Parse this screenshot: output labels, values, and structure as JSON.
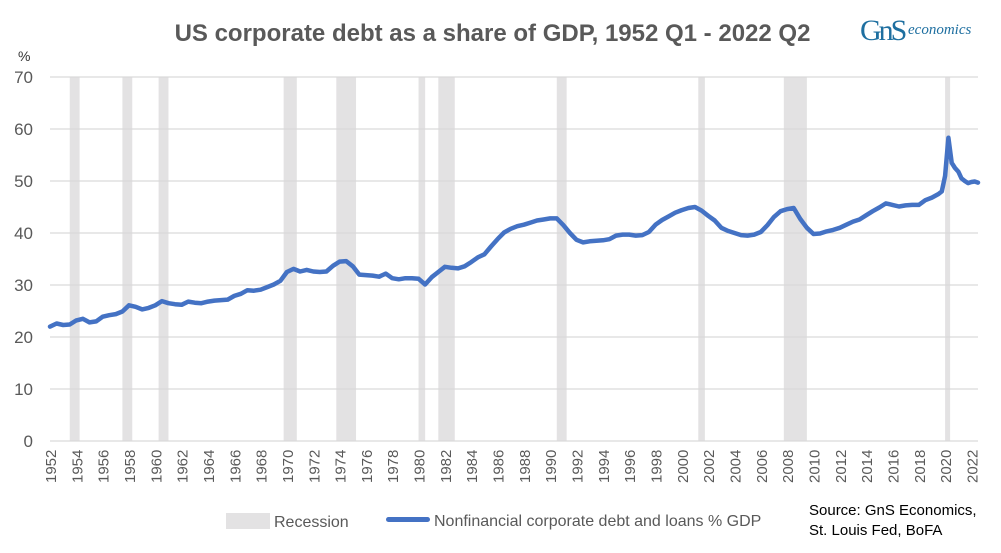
{
  "header": {
    "title": "US corporate debt as a share of GDP, 1952 Q1 - 2022 Q2",
    "logo_mark": "GnS",
    "logo_text": "economics"
  },
  "source": {
    "line1": "Source: GnS Economics,",
    "line2": "St. Louis Fed, BoFA"
  },
  "colors": {
    "line": "#4472c4",
    "recession": "#e3e2e3",
    "grid": "#d9d9d9",
    "text": "#595959",
    "logo": "#1e6fa0"
  },
  "chart_data": {
    "type": "line",
    "title": "US corporate debt as a share of GDP, 1952 Q1 - 2022 Q2",
    "xlabel": "",
    "ylabel": "%",
    "ylim": [
      0,
      70
    ],
    "xlim": [
      1952.0,
      2022.5
    ],
    "y_ticks": [
      0,
      10,
      20,
      30,
      40,
      50,
      60,
      70
    ],
    "x_ticks": [
      "1952",
      "1954",
      "1956",
      "1958",
      "1960",
      "1962",
      "1964",
      "1966",
      "1968",
      "1970",
      "1972",
      "1974",
      "1976",
      "1978",
      "1980",
      "1982",
      "1984",
      "1986",
      "1988",
      "1990",
      "1992",
      "1994",
      "1996",
      "1998",
      "2000",
      "2002",
      "2004",
      "2006",
      "2008",
      "2010",
      "2012",
      "2014",
      "2016",
      "2018",
      "2020",
      "2022"
    ],
    "grid": "horizontal",
    "legend_position": "bottom",
    "legend": [
      "Recession",
      "Nonfinancial corporate debt and loans % GDP"
    ],
    "recessions": [
      [
        1953.5,
        1954.25
      ],
      [
        1957.5,
        1958.25
      ],
      [
        1960.25,
        1961.0
      ],
      [
        1969.75,
        1970.75
      ],
      [
        1973.75,
        1975.25
      ],
      [
        1980.0,
        1980.5
      ],
      [
        1981.5,
        1982.75
      ],
      [
        1990.5,
        1991.25
      ],
      [
        2001.25,
        2001.75
      ],
      [
        2007.75,
        2009.5
      ],
      [
        2020.0,
        2020.25
      ]
    ],
    "series": [
      {
        "name": "Nonfinancial corporate debt and loans % GDP",
        "x": [
          1952.0,
          1952.5,
          1953.0,
          1953.5,
          1954.0,
          1954.5,
          1955.0,
          1955.5,
          1956.0,
          1956.5,
          1957.0,
          1957.5,
          1958.0,
          1958.5,
          1959.0,
          1959.5,
          1960.0,
          1960.5,
          1961.0,
          1961.5,
          1962.0,
          1962.5,
          1963.0,
          1963.5,
          1964.0,
          1964.5,
          1965.0,
          1965.5,
          1966.0,
          1966.5,
          1967.0,
          1967.5,
          1968.0,
          1968.5,
          1969.0,
          1969.5,
          1970.0,
          1970.5,
          1971.0,
          1971.5,
          1972.0,
          1972.5,
          1973.0,
          1973.5,
          1974.0,
          1974.5,
          1975.0,
          1975.5,
          1976.0,
          1976.5,
          1977.0,
          1977.5,
          1978.0,
          1978.5,
          1979.0,
          1979.5,
          1980.0,
          1980.5,
          1981.0,
          1981.5,
          1982.0,
          1982.5,
          1983.0,
          1983.5,
          1984.0,
          1984.5,
          1985.0,
          1985.5,
          1986.0,
          1986.5,
          1987.0,
          1987.5,
          1988.0,
          1988.5,
          1989.0,
          1989.5,
          1990.0,
          1990.5,
          1991.0,
          1991.5,
          1992.0,
          1992.5,
          1993.0,
          1993.5,
          1994.0,
          1994.5,
          1995.0,
          1995.5,
          1996.0,
          1996.5,
          1997.0,
          1997.5,
          1998.0,
          1998.5,
          1999.0,
          1999.5,
          2000.0,
          2000.5,
          2001.0,
          2001.5,
          2002.0,
          2002.5,
          2003.0,
          2003.5,
          2004.0,
          2004.5,
          2005.0,
          2005.5,
          2006.0,
          2006.5,
          2007.0,
          2007.5,
          2008.0,
          2008.5,
          2009.0,
          2009.5,
          2010.0,
          2010.5,
          2011.0,
          2011.5,
          2012.0,
          2012.5,
          2013.0,
          2013.5,
          2014.0,
          2014.5,
          2015.0,
          2015.5,
          2016.0,
          2016.5,
          2017.0,
          2017.5,
          2018.0,
          2018.5,
          2019.0,
          2019.5,
          2019.75,
          2020.0,
          2020.25,
          2020.5,
          2020.75,
          2021.0,
          2021.25,
          2021.5,
          2021.75,
          2022.0,
          2022.25,
          2022.5
        ],
        "values": [
          22.0,
          22.6,
          22.3,
          22.4,
          23.2,
          23.5,
          22.8,
          23.0,
          23.9,
          24.2,
          24.4,
          24.9,
          26.1,
          25.8,
          25.3,
          25.6,
          26.1,
          26.9,
          26.5,
          26.3,
          26.2,
          26.8,
          26.6,
          26.5,
          26.8,
          27.0,
          27.1,
          27.2,
          27.9,
          28.3,
          29.0,
          28.9,
          29.1,
          29.6,
          30.1,
          30.8,
          32.5,
          33.1,
          32.6,
          32.9,
          32.6,
          32.5,
          32.6,
          33.7,
          34.5,
          34.6,
          33.6,
          32.0,
          31.9,
          31.8,
          31.6,
          32.2,
          31.3,
          31.1,
          31.3,
          31.3,
          31.2,
          30.1,
          31.5,
          32.5,
          33.5,
          33.3,
          33.2,
          33.6,
          34.4,
          35.3,
          35.9,
          37.4,
          38.8,
          40.1,
          40.8,
          41.3,
          41.6,
          42.0,
          42.4,
          42.6,
          42.8,
          42.8,
          41.5,
          40.0,
          38.7,
          38.2,
          38.4,
          38.5,
          38.6,
          38.8,
          39.5,
          39.7,
          39.7,
          39.5,
          39.6,
          40.2,
          41.6,
          42.5,
          43.2,
          43.9,
          44.4,
          44.8,
          45.0,
          44.3,
          43.3,
          42.4,
          41.0,
          40.4,
          40.0,
          39.6,
          39.5,
          39.7,
          40.2,
          41.5,
          43.1,
          44.2,
          44.6,
          44.8,
          42.7,
          41.0,
          39.8,
          39.9,
          40.3,
          40.6,
          41.0,
          41.6,
          42.2,
          42.6,
          43.4,
          44.2,
          44.9,
          45.7,
          45.4,
          45.1,
          45.3,
          45.4,
          45.4,
          46.3,
          46.8,
          47.5,
          48.0,
          51.0,
          58.3,
          53.5,
          52.5,
          51.8,
          50.5,
          50.0,
          49.6,
          49.8,
          49.9,
          49.7
        ]
      }
    ]
  }
}
